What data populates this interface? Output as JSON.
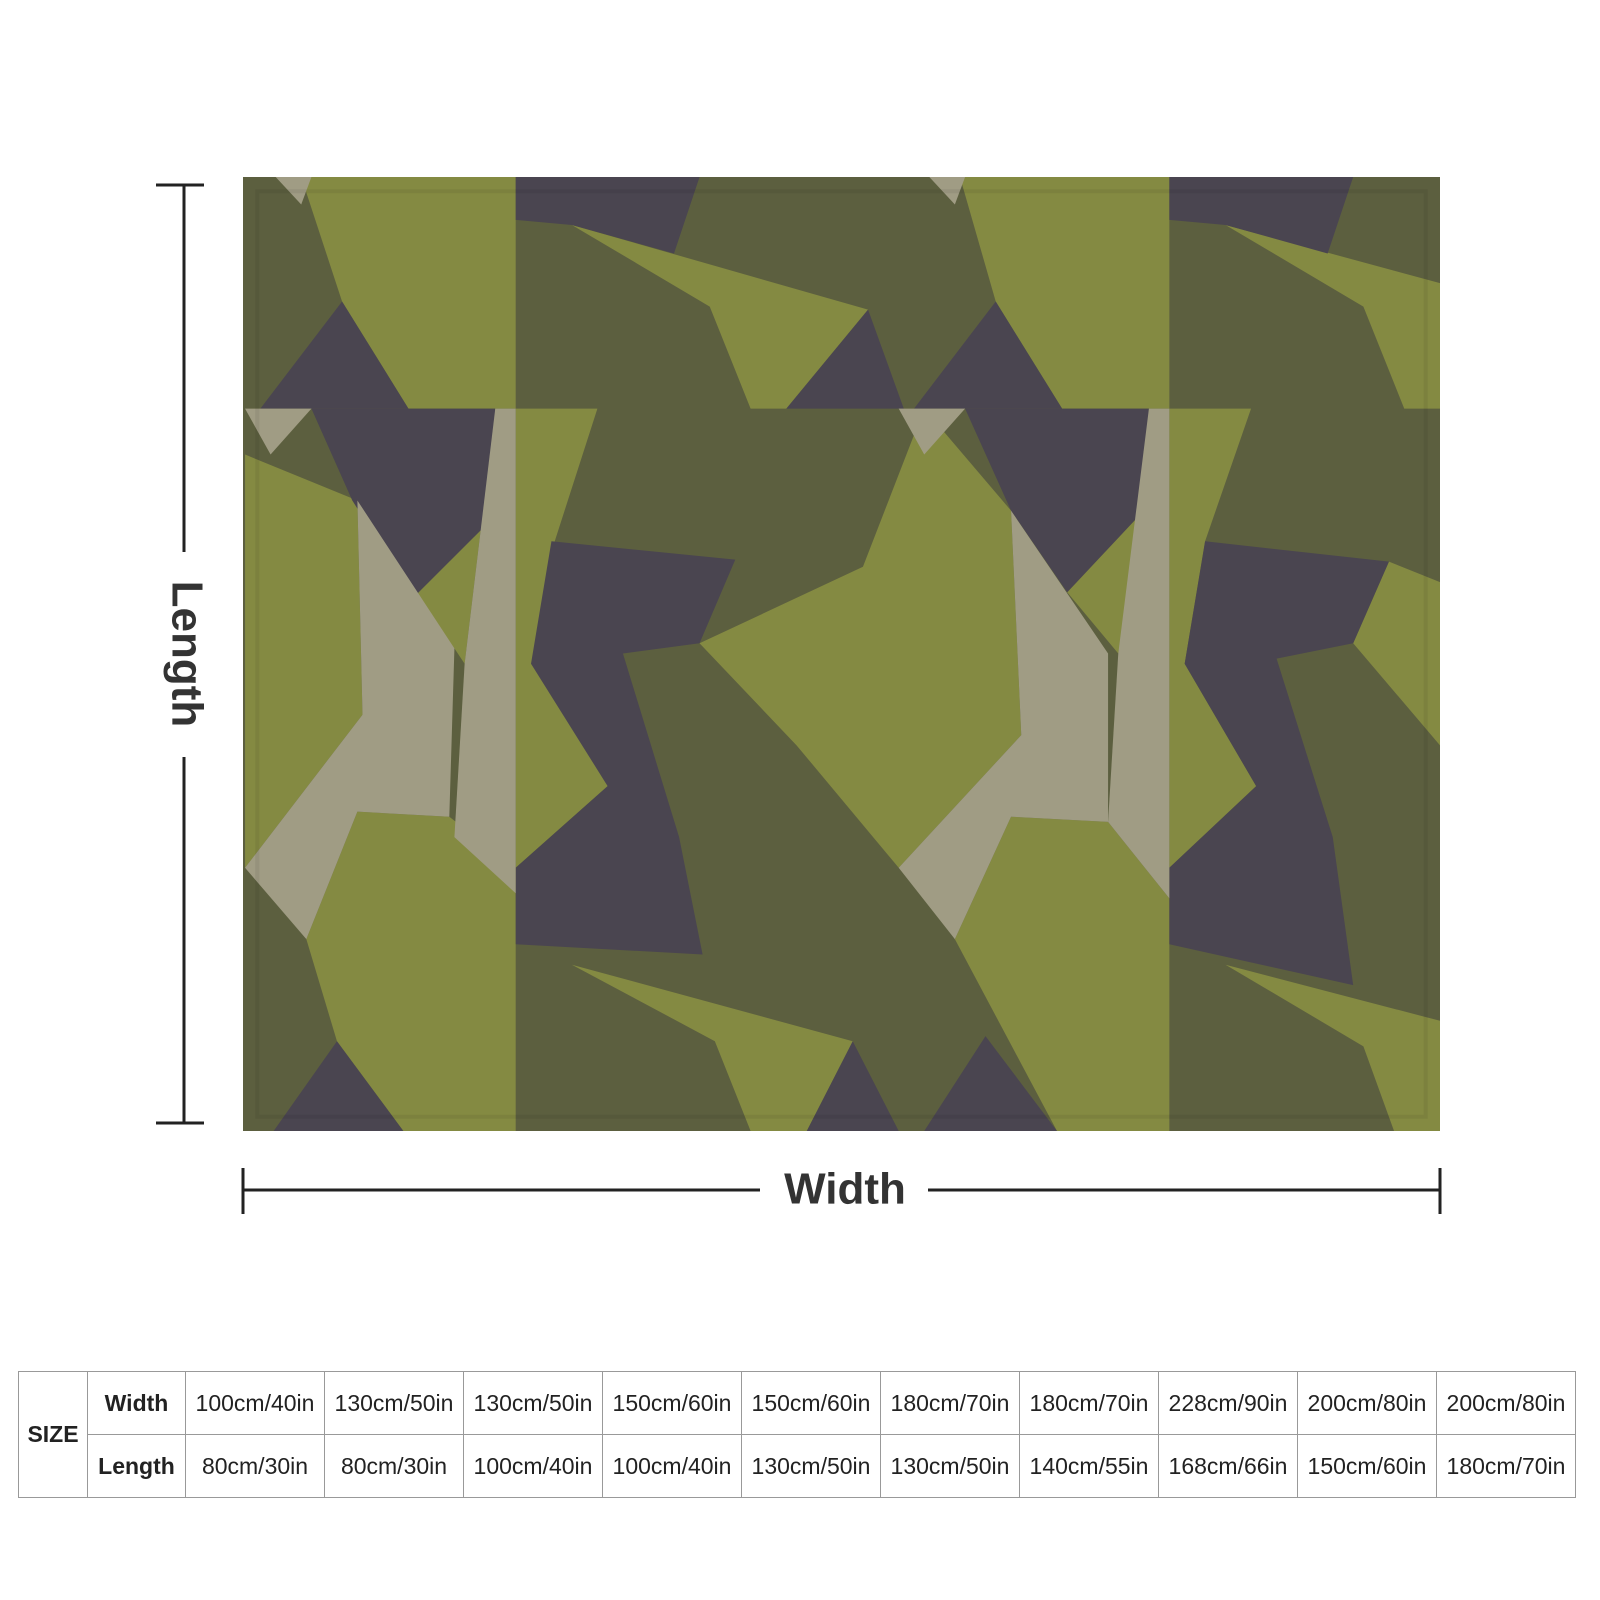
{
  "labels": {
    "length": "Length",
    "width": "Width"
  },
  "table": {
    "size_label": "SIZE",
    "row_headers": [
      "Width",
      "Length"
    ],
    "rows": [
      [
        "100cm/40in",
        "130cm/50in",
        "130cm/50in",
        "150cm/60in",
        "150cm/60in",
        "180cm/70in",
        "180cm/70in",
        "228cm/90in",
        "200cm/80in",
        "200cm/80in"
      ],
      [
        "80cm/30in",
        "80cm/30in",
        "100cm/40in",
        "100cm/40in",
        "130cm/50in",
        "130cm/50in",
        "140cm/55in",
        "168cm/66in",
        "150cm/60in",
        "180cm/70in"
      ]
    ]
  }
}
